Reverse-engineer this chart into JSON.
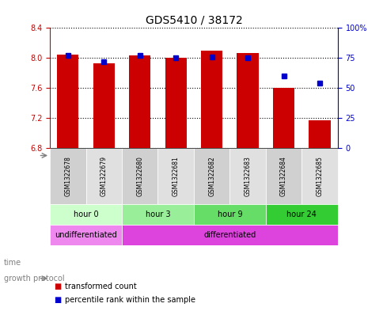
{
  "title": "GDS5410 / 38172",
  "samples": [
    "GSM1322678",
    "GSM1322679",
    "GSM1322680",
    "GSM1322681",
    "GSM1322682",
    "GSM1322683",
    "GSM1322684",
    "GSM1322685"
  ],
  "bar_values": [
    8.05,
    7.93,
    8.03,
    8.0,
    8.1,
    8.07,
    7.6,
    7.17
  ],
  "bar_bottom": 6.8,
  "percentile_values": [
    77,
    72,
    77,
    75,
    76,
    75,
    60,
    54
  ],
  "ylim": [
    6.8,
    8.4
  ],
  "y2lim": [
    0,
    100
  ],
  "yticks": [
    6.8,
    7.2,
    7.6,
    8.0,
    8.4
  ],
  "y2ticks": [
    0,
    25,
    50,
    75,
    100
  ],
  "y2ticklabels": [
    "0",
    "25",
    "50",
    "75",
    "100%"
  ],
  "bar_color": "#CC0000",
  "bar_width": 0.6,
  "percentile_color": "#0000CC",
  "time_groups": [
    {
      "label": "hour 0",
      "samples": [
        0,
        1
      ],
      "color": "#ccffcc"
    },
    {
      "label": "hour 3",
      "samples": [
        2,
        3
      ],
      "color": "#99ee99"
    },
    {
      "label": "hour 9",
      "samples": [
        4,
        5
      ],
      "color": "#66dd66"
    },
    {
      "label": "hour 24",
      "samples": [
        6,
        7
      ],
      "color": "#33cc33"
    }
  ],
  "growth_groups": [
    {
      "label": "undifferentiated",
      "samples": [
        0,
        1
      ],
      "color": "#ee88ee"
    },
    {
      "label": "differentiated",
      "samples": [
        2,
        7
      ],
      "color": "#dd44dd"
    }
  ],
  "xlabel_time": "time",
  "xlabel_growth": "growth protocol",
  "legend_bar_label": "transformed count",
  "legend_pct_label": "percentile rank within the sample",
  "background_color": "#ffffff",
  "plot_bg_color": "#ffffff",
  "tick_color_left": "#CC0000",
  "tick_color_right": "#0000CC",
  "grid_color": "#000000",
  "xlabel_area_color": "#cccccc"
}
